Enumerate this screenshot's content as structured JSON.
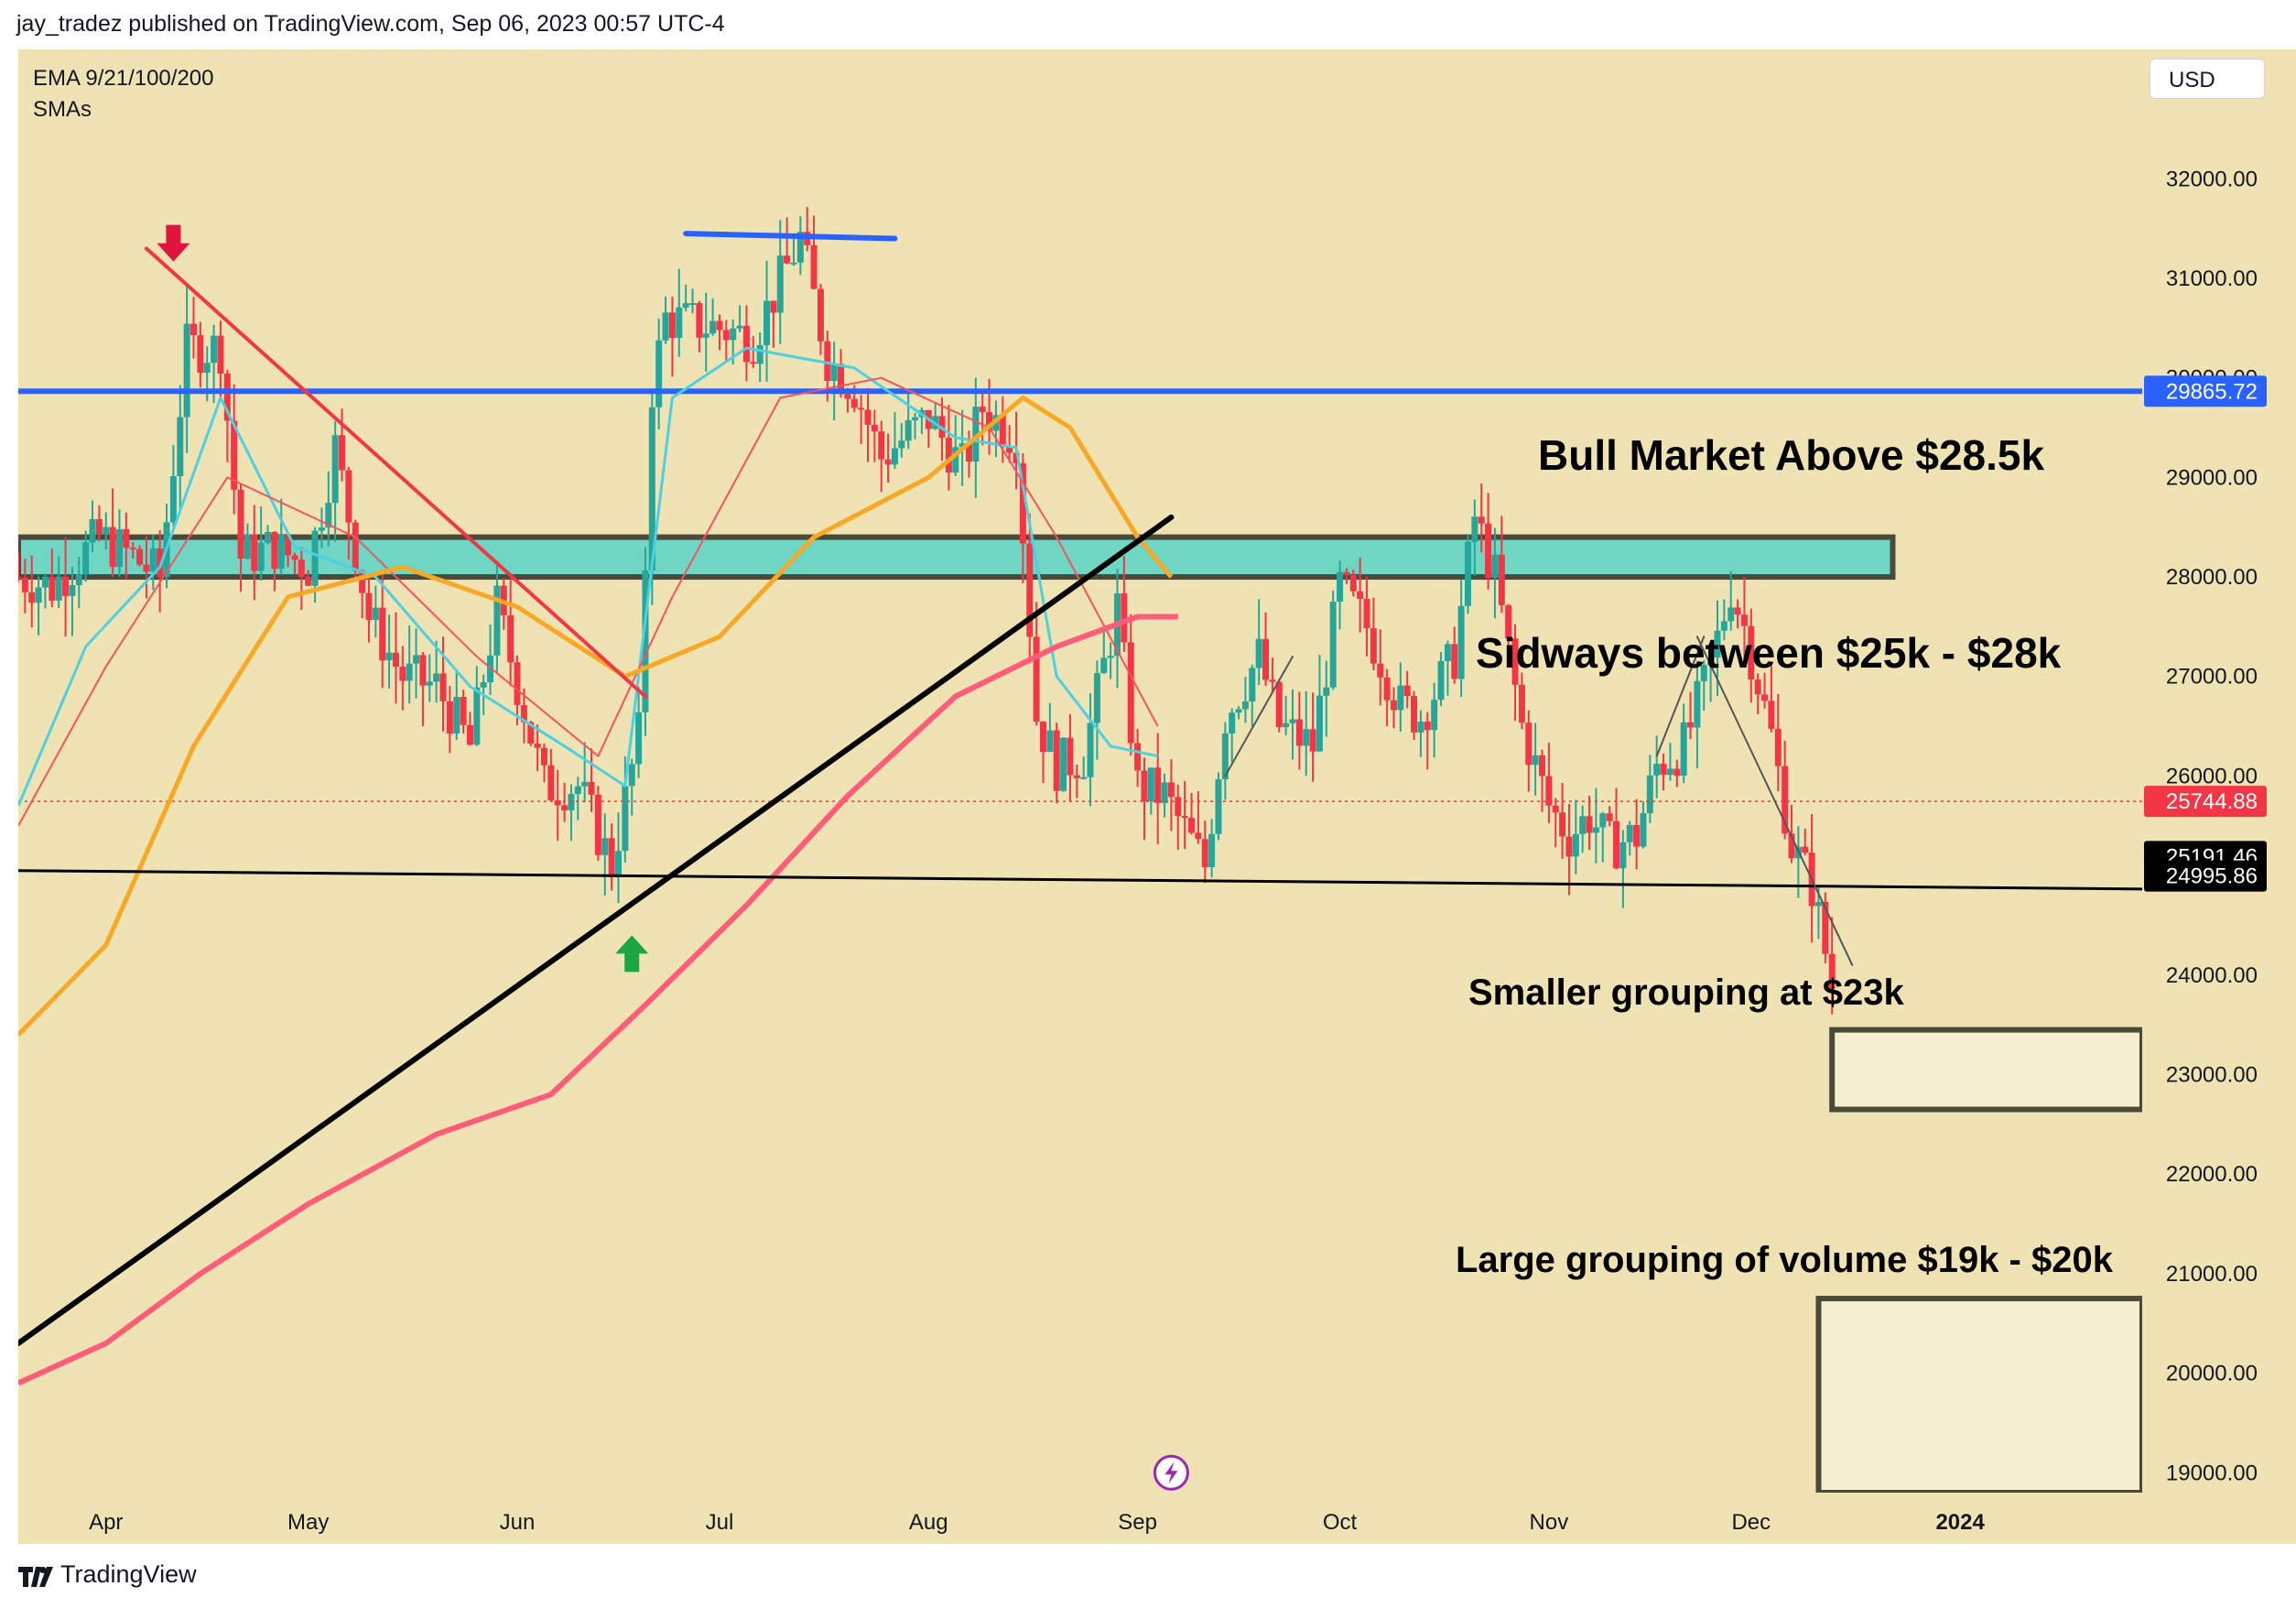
{
  "header": {
    "publisher": "jay_tradez published on TradingView.com, Sep 06, 2023 00:57 UTC-4"
  },
  "indicators": {
    "ema": "EMA 9/21/100/200",
    "sma": "SMAs"
  },
  "currency_button": "USD",
  "footer": {
    "brand": "TradingView"
  },
  "annotations": {
    "bull": "Bull Market Above $28.5k",
    "sideways": "Sidways between $25k - $28k",
    "smaller": "Smaller grouping at $23k",
    "large": "Large grouping of volume $19k - $20k"
  },
  "colors": {
    "background": "#efe3b3",
    "up_candle": "#26a69a",
    "down_candle": "#f23645",
    "ema9": "#4dd0e1",
    "ema21": "#f7525f",
    "ema100": "#f9a825",
    "ema200": "#ff5c7a",
    "resistance": "#2962ff",
    "zone_fill": "#6fd6c3"
  },
  "icons": [
    "red-down-arrow-icon",
    "green-up-arrow-icon",
    "lightning-icon",
    "tradingview-logo-icon"
  ],
  "chart_data": {
    "type": "candlestick",
    "symbol_interval": "daily",
    "x_axis": {
      "range": [
        "2023-03-19",
        "2024-01-28"
      ],
      "ticks": [
        {
          "date": "2023-04-01",
          "label": "Apr"
        },
        {
          "date": "2023-05-01",
          "label": "May"
        },
        {
          "date": "2023-06-01",
          "label": "Jun"
        },
        {
          "date": "2023-07-01",
          "label": "Jul"
        },
        {
          "date": "2023-08-01",
          "label": "Aug"
        },
        {
          "date": "2023-09-01",
          "label": "Sep"
        },
        {
          "date": "2023-10-01",
          "label": "Oct"
        },
        {
          "date": "2023-11-01",
          "label": "Nov"
        },
        {
          "date": "2023-12-01",
          "label": "Dec"
        },
        {
          "date": "2024-01-01",
          "label": "2024"
        }
      ]
    },
    "y_axis": {
      "range": [
        18800,
        33300
      ],
      "ticks": [
        19000,
        20000,
        21000,
        22000,
        23000,
        24000,
        25000,
        26000,
        27000,
        28000,
        29000,
        30000,
        31000,
        32000
      ],
      "tick_labels": [
        "19000.00",
        "20000.00",
        "21000.00",
        "22000.00",
        "23000.00",
        "24000.00",
        "25000.00",
        "26000.00",
        "27000.00",
        "28000.00",
        "29000.00",
        "30000.00",
        "31000.00",
        "32000.00"
      ]
    },
    "price_labels": [
      {
        "value": 29865.72,
        "label": "29865.72",
        "color": "#2962ff",
        "text_color": "#ffffff"
      },
      {
        "value": 25744.88,
        "label": "25744.88",
        "color": "#f23645",
        "text_color": "#ffffff"
      },
      {
        "value": 25191.46,
        "label": "25191.46",
        "color": "#000000",
        "text_color": "#ffffff"
      },
      {
        "value": 24995.86,
        "label": "24995.86",
        "color": "#000000",
        "text_color": "#ffffff"
      }
    ],
    "anchors": [
      [
        "2023-03-19",
        28000
      ],
      [
        "2023-03-24",
        27900
      ],
      [
        "2023-03-31",
        28400
      ],
      [
        "2023-04-05",
        28200
      ],
      [
        "2023-04-09",
        28000
      ],
      [
        "2023-04-13",
        30300
      ],
      [
        "2023-04-18",
        30300
      ],
      [
        "2023-04-21",
        28200
      ],
      [
        "2023-04-26",
        28300
      ],
      [
        "2023-05-01",
        28100
      ],
      [
        "2023-05-05",
        29300
      ],
      [
        "2023-05-10",
        27600
      ],
      [
        "2023-05-15",
        27000
      ],
      [
        "2023-05-20",
        26900
      ],
      [
        "2023-05-25",
        26300
      ],
      [
        "2023-05-29",
        27700
      ],
      [
        "2023-06-05",
        25900
      ],
      [
        "2023-06-10",
        25900
      ],
      [
        "2023-06-15",
        25100
      ],
      [
        "2023-06-19",
        26400
      ],
      [
        "2023-06-21",
        29900
      ],
      [
        "2023-06-23",
        30600
      ],
      [
        "2023-07-01",
        30500
      ],
      [
        "2023-07-06",
        30400
      ],
      [
        "2023-07-13",
        31400
      ],
      [
        "2023-07-17",
        30200
      ],
      [
        "2023-07-21",
        29900
      ],
      [
        "2023-07-25",
        29200
      ],
      [
        "2023-08-01",
        29600
      ],
      [
        "2023-08-06",
        29100
      ],
      [
        "2023-08-09",
        29700
      ],
      [
        "2023-08-14",
        29400
      ],
      [
        "2023-08-17",
        26600
      ],
      [
        "2023-08-20",
        26100
      ],
      [
        "2023-08-24",
        26200
      ],
      [
        "2023-08-29",
        27700
      ],
      [
        "2023-09-01",
        25900
      ],
      [
        "2023-09-05",
        25800
      ],
      [
        "2023-09-11",
        25100
      ],
      [
        "2023-09-14",
        26600
      ],
      [
        "2023-09-19",
        27200
      ],
      [
        "2023-09-22",
        26500
      ],
      [
        "2023-09-27",
        26300
      ],
      [
        "2023-10-01",
        27900
      ],
      [
        "2023-10-05",
        27500
      ],
      [
        "2023-10-10",
        26700
      ],
      [
        "2023-10-13",
        26600
      ],
      [
        "2023-10-18",
        27200
      ],
      [
        "2023-10-21",
        28600
      ],
      [
        "2023-10-24",
        28000
      ],
      [
        "2023-10-28",
        26500
      ],
      [
        "2023-11-01",
        25700
      ],
      [
        "2023-11-04",
        25400
      ],
      [
        "2023-11-07",
        25600
      ],
      [
        "2023-11-10",
        25300
      ],
      [
        "2023-11-14",
        25400
      ],
      [
        "2023-11-17",
        26100
      ],
      [
        "2023-11-21",
        26300
      ],
      [
        "2023-11-25",
        27100
      ],
      [
        "2023-11-28",
        27900
      ],
      [
        "2023-11-30",
        27500
      ],
      [
        "2023-12-04",
        26400
      ],
      [
        "2023-12-07",
        25300
      ],
      [
        "2023-12-10",
        24900
      ],
      [
        "2023-12-13",
        23900
      ]
    ],
    "moving_averages": [
      {
        "name": "EMA 9",
        "color": "#4dd0e1",
        "points": [
          [
            "2023-03-19",
            25700
          ],
          [
            "2023-03-29",
            27300
          ],
          [
            "2023-04-09",
            28100
          ],
          [
            "2023-04-18",
            29800
          ],
          [
            "2023-04-29",
            28300
          ],
          [
            "2023-05-11",
            28000
          ],
          [
            "2023-05-25",
            26900
          ],
          [
            "2023-06-08",
            26300
          ],
          [
            "2023-06-17",
            25900
          ],
          [
            "2023-06-24",
            29800
          ],
          [
            "2023-07-05",
            30300
          ],
          [
            "2023-07-21",
            30100
          ],
          [
            "2023-08-05",
            29400
          ],
          [
            "2023-08-14",
            29300
          ],
          [
            "2023-08-20",
            27000
          ],
          [
            "2023-08-28",
            26300
          ],
          [
            "2023-09-04",
            26200
          ]
        ]
      },
      {
        "name": "EMA 21",
        "color": "#f7525f",
        "points": [
          [
            "2023-03-19",
            25500
          ],
          [
            "2023-04-01",
            27100
          ],
          [
            "2023-04-19",
            29000
          ],
          [
            "2023-05-08",
            28400
          ],
          [
            "2023-05-26",
            27200
          ],
          [
            "2023-06-13",
            26200
          ],
          [
            "2023-06-24",
            27800
          ],
          [
            "2023-07-10",
            29800
          ],
          [
            "2023-07-25",
            30000
          ],
          [
            "2023-08-10",
            29500
          ],
          [
            "2023-08-20",
            28400
          ],
          [
            "2023-09-04",
            26500
          ]
        ]
      },
      {
        "name": "EMA 100",
        "color": "#f9a825",
        "points": [
          [
            "2023-03-19",
            23400
          ],
          [
            "2023-04-01",
            24300
          ],
          [
            "2023-04-14",
            26300
          ],
          [
            "2023-04-28",
            27800
          ],
          [
            "2023-05-15",
            28100
          ],
          [
            "2023-06-01",
            27700
          ],
          [
            "2023-06-17",
            27000
          ],
          [
            "2023-07-01",
            27400
          ],
          [
            "2023-07-15",
            28400
          ],
          [
            "2023-08-01",
            29000
          ],
          [
            "2023-08-15",
            29800
          ],
          [
            "2023-08-22",
            29500
          ],
          [
            "2023-09-01",
            28400
          ],
          [
            "2023-09-06",
            28000
          ]
        ]
      },
      {
        "name": "EMA 200",
        "color": "#ff5c7a",
        "points": [
          [
            "2023-03-19",
            19900
          ],
          [
            "2023-04-01",
            20300
          ],
          [
            "2023-04-15",
            21000
          ],
          [
            "2023-05-01",
            21700
          ],
          [
            "2023-05-20",
            22400
          ],
          [
            "2023-06-06",
            22800
          ],
          [
            "2023-06-20",
            23700
          ],
          [
            "2023-07-05",
            24700
          ],
          [
            "2023-07-20",
            25800
          ],
          [
            "2023-08-05",
            26800
          ],
          [
            "2023-08-20",
            27300
          ],
          [
            "2023-09-01",
            27600
          ],
          [
            "2023-09-07",
            27600
          ]
        ]
      }
    ],
    "trendlines": [
      {
        "name": "descending-resistance",
        "color": "#f23645",
        "from": [
          "2023-04-07",
          31300
        ],
        "to": [
          "2023-06-20",
          26800
        ]
      },
      {
        "name": "range-top",
        "color": "#2962ff",
        "from": [
          "2023-06-26",
          31450
        ],
        "to": [
          "2023-07-27",
          31400
        ]
      },
      {
        "name": "ascending-support",
        "color": "#000000",
        "from": [
          "2023-03-19",
          20300
        ],
        "to": [
          "2023-09-06",
          28600
        ]
      },
      {
        "name": "horizontal-support",
        "color": "#000000",
        "from": [
          "2023-03-19",
          25050
        ],
        "to": [
          "2024-02-05",
          24860
        ]
      },
      {
        "name": "recent-decline",
        "color": "#555555",
        "from": [
          "2023-11-23",
          27400
        ],
        "to": [
          "2023-12-16",
          24100
        ]
      },
      {
        "name": "swing-path-1",
        "color": "#555555",
        "from": [
          "2023-09-14",
          26000
        ],
        "to": [
          "2023-09-24",
          27200
        ]
      },
      {
        "name": "swing-path-2",
        "color": "#555555",
        "from": [
          "2023-11-17",
          26200
        ],
        "to": [
          "2023-11-24",
          27400
        ]
      }
    ],
    "horizontal_lines": [
      {
        "name": "resistance-29865",
        "value": 29865.72,
        "color": "#2962ff",
        "style": "solid"
      },
      {
        "name": "last-price",
        "value": 25744.88,
        "color": "#f23645",
        "style": "dotted"
      }
    ],
    "zones": [
      {
        "name": "resistance-zone",
        "from_date": "2023-03-19",
        "to_date": "2023-12-22",
        "low": 28000,
        "high": 28400
      },
      {
        "name": "23k-zone",
        "from_date": "2023-12-13",
        "to_date": "2024-01-28",
        "low": 22650,
        "high": 23450
      },
      {
        "name": "19k-20k-zone",
        "from_date": "2023-12-11",
        "to_date": "2024-01-28",
        "low": 18800,
        "high": 20750
      }
    ],
    "markers": [
      {
        "name": "red-down-arrow",
        "date": "2023-04-11",
        "value": 31150
      },
      {
        "name": "green-up-arrow",
        "date": "2023-06-18",
        "value": 24400
      },
      {
        "name": "lightning-icon",
        "date": "2023-09-06",
        "value": 19000
      }
    ]
  }
}
